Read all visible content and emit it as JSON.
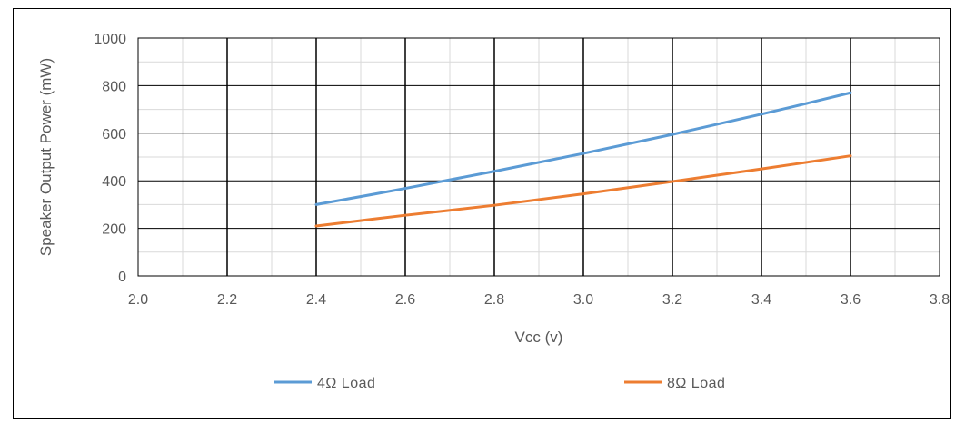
{
  "chart_data": {
    "type": "line",
    "title": "",
    "xlabel": "Vcc (v)",
    "ylabel": "Speaker  Output Power   (mW)",
    "xlim": [
      2.0,
      3.8
    ],
    "ylim": [
      0,
      1000
    ],
    "x_ticks": [
      "2.0",
      "2.2",
      "2.4",
      "2.6",
      "2.8",
      "3.0",
      "3.2",
      "3.4",
      "3.6",
      "3.8"
    ],
    "y_ticks": [
      "0",
      "200",
      "400",
      "600",
      "800",
      "1000"
    ],
    "grid": true,
    "legend_position": "bottom",
    "series": [
      {
        "name": "4Ω Load",
        "color": "#5B9BD5",
        "x": [
          2.4,
          2.6,
          2.8,
          3.0,
          3.2,
          3.4,
          3.6
        ],
        "values": [
          300,
          368,
          440,
          515,
          595,
          680,
          770
        ]
      },
      {
        "name": "8Ω Load",
        "color": "#ED7D31",
        "x": [
          2.4,
          2.6,
          2.8,
          3.0,
          3.2,
          3.4,
          3.6
        ],
        "values": [
          210,
          255,
          297,
          345,
          397,
          450,
          505
        ]
      }
    ]
  }
}
